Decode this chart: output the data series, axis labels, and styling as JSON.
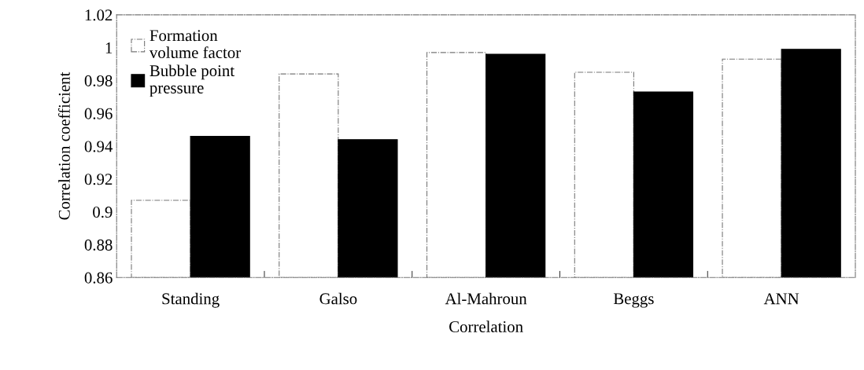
{
  "chart_data": {
    "type": "bar",
    "xlabel": "Correlation",
    "ylabel": "Correlation coefficient",
    "categories": [
      "Standing",
      "Galso",
      "Al-Mahroun",
      "Beggs",
      "ANN"
    ],
    "series": [
      {
        "name": "Formation\nvolume factor",
        "color": "#ffffff",
        "values": [
          0.907,
          0.984,
          0.997,
          0.985,
          0.993
        ]
      },
      {
        "name": "Bubble point\npressure",
        "color": "#000000",
        "values": [
          0.946,
          0.944,
          0.996,
          0.973,
          0.999
        ]
      }
    ],
    "ylim": [
      0.86,
      1.02
    ],
    "yticks": [
      {
        "value": 0.86,
        "label": "0.86"
      },
      {
        "value": 0.88,
        "label": "0.88"
      },
      {
        "value": 0.9,
        "label": "0.9"
      },
      {
        "value": 0.92,
        "label": "0.92"
      },
      {
        "value": 0.94,
        "label": "0.94"
      },
      {
        "value": 0.96,
        "label": "0.96"
      },
      {
        "value": 0.98,
        "label": "0.98"
      },
      {
        "value": 1.0,
        "label": "1"
      },
      {
        "value": 1.02,
        "label": "1.02"
      }
    ],
    "grid": false,
    "legend": "top left"
  }
}
